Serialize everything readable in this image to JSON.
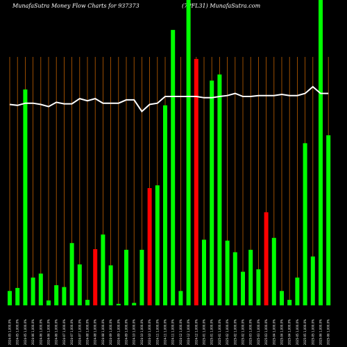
{
  "header": {
    "left_title": "MunafaSutra  Money Flow  Charts for 937373",
    "right_title": "(7PFL31) MunafaSutra.com"
  },
  "chart_data": {
    "type": "bar",
    "title": "MunafaSutra  Money Flow  Charts for 937373",
    "subtitle": "(7PFL31) MunafaSutra.com",
    "xlabel": "",
    "ylabel": "",
    "grid": "vertical lines",
    "ylim": [
      0,
      100
    ],
    "categories": [
      "2024-05 1,000.0%",
      "2024-05 1,000.0%",
      "2024-05 1,000.0%",
      "2024-06 1,000.0%",
      "2024-06 1,000.0%",
      "2024-06 1,000.0%",
      "2024-06 1,000.0%",
      "2024-07 1,000.0%",
      "2024-07 1,000.0%",
      "2024-07 1,000.0%",
      "2024-08 1,000.0%",
      "2024-08 1,000.0%",
      "2024-08 1,000.0%",
      "2024-09 1,000.0%",
      "2024-09 1,000.0%",
      "2024-09 1,000.0%",
      "2024-10 1,000.0%",
      "2024-10 1,000.0%",
      "2024-10 1,000.0%",
      "2024-11 1,000.0%",
      "2024-11 1,000.0%",
      "2024-11 1,000.0%",
      "2024-12 1,000.0%",
      "2024-12 1,000.0%",
      "2024-12 1,000.0%",
      "2025-01 1,000.0%",
      "2025-01 1,000.0%",
      "2025-01 1,000.0%",
      "2025-02 1,000.0%",
      "2025-02 1,000.0%",
      "2025-02 1,000.0%",
      "2025-03 1,000.0%",
      "2025-03 1,000.0%",
      "2025-03 1,000.0%",
      "2025-04 1,000.0%",
      "2025-04 1,000.0%",
      "2025-04 1,000.0%",
      "2025-05 1,000.0%",
      "2025-05 1,000.0%",
      "2025-05 1,000.0%",
      "2025-06 1,000.0%",
      "2025-06 1,000.0%"
    ],
    "series": [
      {
        "type": "bar",
        "values": [
          4.7,
          5.7,
          70.7,
          9.1,
          10.4,
          1.6,
          6.6,
          6.0,
          20.4,
          13.4,
          1.8,
          18.4,
          23.2,
          13.1,
          0.5,
          18.2,
          0.8,
          18.2,
          38.4,
          39.3,
          65.5,
          90.2,
          4.7,
          100,
          80.7,
          21.5,
          73.6,
          75.6,
          21.2,
          17.4,
          11.0,
          18.2,
          11.8,
          30.5,
          22.1,
          4.7,
          1.8,
          9.1,
          53.1,
          16.0,
          100,
          55.7
        ],
        "colors": [
          "green",
          "green",
          "green",
          "green",
          "green",
          "green",
          "green",
          "green",
          "green",
          "green",
          "green",
          "red",
          "green",
          "green",
          "green",
          "green",
          "green",
          "green",
          "red",
          "green",
          "green",
          "green",
          "green",
          "green",
          "red",
          "green",
          "green",
          "green",
          "green",
          "green",
          "green",
          "green",
          "green",
          "red",
          "green",
          "green",
          "green",
          "green",
          "green",
          "green",
          "green",
          "green"
        ]
      },
      {
        "type": "line",
        "values": [
          65.8,
          65.5,
          66.2,
          66.2,
          65.8,
          65.1,
          66.5,
          66.0,
          66.0,
          67.7,
          67.0,
          67.7,
          66.2,
          66.2,
          66.2,
          67.3,
          67.3,
          63.5,
          65.8,
          66.2,
          68.4,
          68.4,
          68.4,
          68.4,
          68.4,
          68.0,
          68.0,
          68.4,
          68.7,
          69.4,
          68.4,
          68.4,
          68.7,
          68.7,
          68.7,
          69.1,
          68.7,
          68.7,
          69.4,
          71.6,
          69.4,
          69.4
        ]
      }
    ],
    "colors": {
      "green": "#00ff00",
      "red": "#ff0000",
      "grid": "#c06000",
      "line": "#ffffff"
    }
  }
}
